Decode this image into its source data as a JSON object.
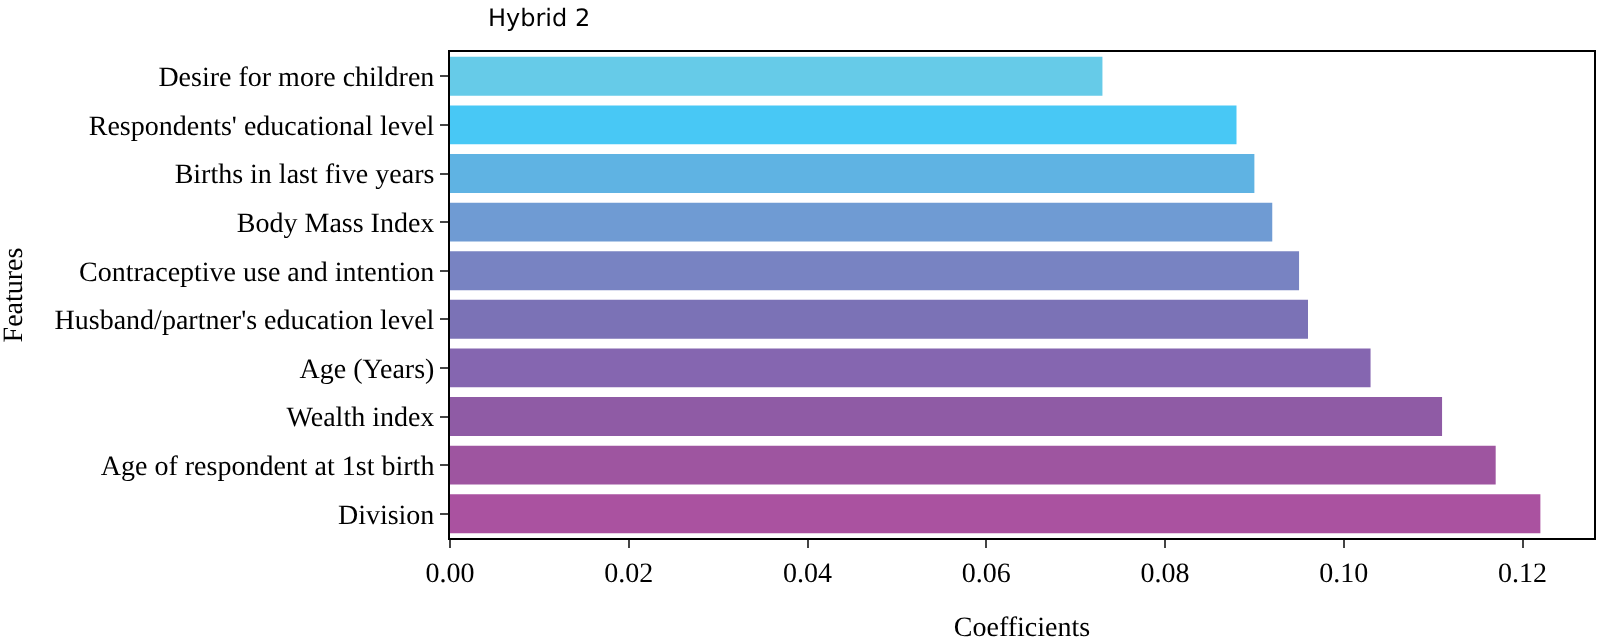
{
  "chart_data": {
    "type": "bar",
    "orientation": "horizontal",
    "title": "Hybrid 2",
    "xlabel": "Coefficients",
    "ylabel": "Features",
    "categories": [
      "Desire for more children",
      "Respondents' educational level",
      "Births in last five years",
      "Body Mass Index",
      "Contraceptive use and intention",
      "Husband/partner's education level",
      "Age (Years)",
      "Wealth index",
      "Age of respondent at 1st birth",
      "Division"
    ],
    "values": [
      0.073,
      0.088,
      0.09,
      0.092,
      0.095,
      0.096,
      0.103,
      0.111,
      0.117,
      0.122
    ],
    "colors": [
      "#66cbe8",
      "#48c8f5",
      "#5fb3e3",
      "#6f9bd3",
      "#7883c2",
      "#7b72b6",
      "#8566b0",
      "#8f5ba5",
      "#9e55a0",
      "#aa52a0"
    ],
    "xlim": [
      0,
      0.128
    ],
    "xticks": [
      {
        "value": 0,
        "label": "0.00"
      },
      {
        "value": 0.02,
        "label": "0.02"
      },
      {
        "value": 0.04,
        "label": "0.04"
      },
      {
        "value": 0.06,
        "label": "0.06"
      },
      {
        "value": 0.08,
        "label": "0.08"
      },
      {
        "value": 0.1,
        "label": "0.10"
      },
      {
        "value": 0.12,
        "label": "0.12"
      }
    ]
  }
}
